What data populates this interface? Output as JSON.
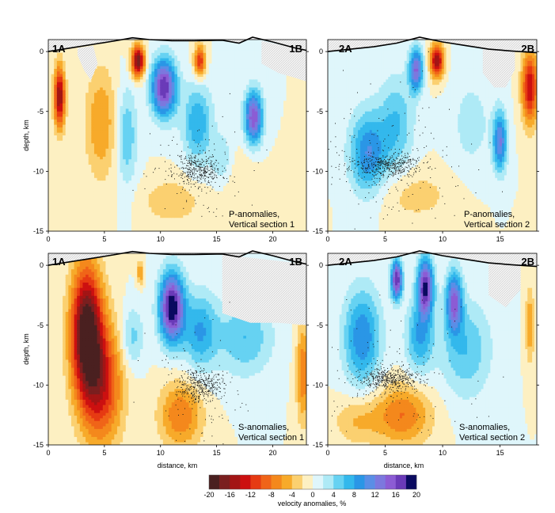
{
  "colors": {
    "scale": [
      "#4a2020",
      "#7a1f1f",
      "#a31515",
      "#cc1010",
      "#e63a12",
      "#f06418",
      "#f4881c",
      "#f7aa2a",
      "#fbd070",
      "#fdf0c2",
      "#dff6fb",
      "#aeeaf6",
      "#66d2f2",
      "#33b8ec",
      "#2a96e6",
      "#5a8ee6",
      "#7c78de",
      "#8c5cd4",
      "#6a3ab8",
      "#0a0a60"
    ],
    "hatch": "#c9c9c9",
    "dots": "#1a1a1a"
  },
  "chart_data": [
    {
      "type": "heatmap",
      "id": "p1",
      "corner_left": "1A",
      "corner_right": "1B",
      "note_line1": "P-anomalies,",
      "note_line2": "Vertical section 1",
      "ylabel": "depth, km",
      "xlabel": "",
      "xlim": [
        0,
        23
      ],
      "ylim": [
        -15,
        1
      ],
      "xticks": [
        "0",
        "5",
        "10",
        "15",
        "20"
      ],
      "xtick_values": [
        0,
        5,
        10,
        15,
        20
      ],
      "yticks": [
        "0",
        "-5",
        "-10",
        "-15"
      ],
      "ytick_values": [
        0,
        -5,
        -10,
        -15
      ],
      "topography": [
        [
          0,
          0
        ],
        [
          2,
          0.3
        ],
        [
          4,
          0.6
        ],
        [
          6,
          0.9
        ],
        [
          7.5,
          1.15
        ],
        [
          9,
          1.0
        ],
        [
          11,
          0.9
        ],
        [
          13,
          0.9
        ],
        [
          15.5,
          0.95
        ],
        [
          17,
          0.7
        ],
        [
          18.2,
          1.2
        ],
        [
          20,
          0.8
        ],
        [
          22,
          0.3
        ],
        [
          23,
          0.1
        ]
      ],
      "blobs": [
        {
          "x": 1,
          "z": -3.8,
          "rx": 0.5,
          "rz": 2.6,
          "v": -16
        },
        {
          "x": 4.7,
          "z": -6,
          "rx": 1.4,
          "rz": 4.6,
          "v": -6
        },
        {
          "x": 8,
          "z": -0.8,
          "rx": 0.6,
          "rz": 1.3,
          "v": -18
        },
        {
          "x": 13.5,
          "z": -0.8,
          "rx": 0.5,
          "rz": 1.3,
          "v": -12
        },
        {
          "x": 11,
          "z": -12.5,
          "rx": 2.5,
          "rz": 1.8,
          "v": -4
        },
        {
          "x": 17,
          "z": -11,
          "rx": 1.8,
          "rz": 3,
          "v": -2
        },
        {
          "x": 10.3,
          "z": -3,
          "rx": 1.1,
          "rz": 2.4,
          "v": 18
        },
        {
          "x": 18.3,
          "z": -5.5,
          "rx": 0.8,
          "rz": 2.2,
          "v": 16
        },
        {
          "x": 7,
          "z": -7,
          "rx": 0.9,
          "rz": 4,
          "v": 6
        },
        {
          "x": 13.3,
          "z": -6,
          "rx": 1.3,
          "rz": 3.2,
          "v": 8
        },
        {
          "x": 15.5,
          "z": -9,
          "rx": 1,
          "rz": 2.2,
          "v": 4
        }
      ],
      "hatch_regions": [
        [
          [
            0,
            0
          ],
          [
            2,
            0.3
          ],
          [
            4,
            0.6
          ],
          [
            6,
            0.9
          ],
          [
            7.5,
            1.15
          ],
          [
            7.5,
            1.15
          ],
          [
            0,
            1.15
          ]
        ],
        [
          [
            19,
            -1
          ],
          [
            20.5,
            -1.8
          ],
          [
            22,
            -2.2
          ],
          [
            23,
            -2.5
          ],
          [
            23,
            0.1
          ],
          [
            19,
            0.9
          ]
        ],
        [
          [
            2.6,
            -0.3
          ],
          [
            3.2,
            -1.6
          ],
          [
            3.8,
            -2.4
          ],
          [
            4.4,
            -1
          ],
          [
            4,
            0.5
          ],
          [
            2.6,
            0.3
          ]
        ]
      ],
      "events": {
        "cx": 13.3,
        "cz": -9.8,
        "sx": 1.3,
        "sz": 1.2,
        "n": 380,
        "spread_x": 2.2,
        "spread_z": 2.4,
        "n_sparse": 110,
        "seed": 11
      }
    },
    {
      "type": "heatmap",
      "id": "p2",
      "corner_left": "2A",
      "corner_right": "2B",
      "note_line1": "P-anomalies,",
      "note_line2": "Vertical section 2",
      "ylabel": "",
      "xlabel": "",
      "xlim": [
        0,
        18.2
      ],
      "ylim": [
        -15,
        1
      ],
      "xticks": [
        "0",
        "5",
        "10",
        "15"
      ],
      "xtick_values": [
        0,
        5,
        10,
        15
      ],
      "yticks": [
        "0",
        "-5",
        "-10",
        "-15"
      ],
      "ytick_values": [
        0,
        -5,
        -10,
        -15
      ],
      "topography": [
        [
          0,
          0
        ],
        [
          2,
          0.2
        ],
        [
          4,
          0.4
        ],
        [
          6,
          0.7
        ],
        [
          8,
          1.2
        ],
        [
          10,
          0.8
        ],
        [
          12,
          0.5
        ],
        [
          14,
          0.2
        ],
        [
          16,
          0.05
        ],
        [
          18.2,
          -0.1
        ]
      ],
      "blobs": [
        {
          "x": 9.5,
          "z": -0.8,
          "rx": 0.6,
          "rz": 1.4,
          "v": -16
        },
        {
          "x": 17.6,
          "z": -3,
          "rx": 0.7,
          "rz": 3,
          "v": -14
        },
        {
          "x": 7.5,
          "z": -12,
          "rx": 3.5,
          "rz": 2.2,
          "v": -3
        },
        {
          "x": 3.5,
          "z": -8.5,
          "rx": 1.6,
          "rz": 3.5,
          "v": 10
        },
        {
          "x": 7.7,
          "z": -1.5,
          "rx": 0.6,
          "rz": 1.8,
          "v": 14
        },
        {
          "x": 15,
          "z": -7.5,
          "rx": 0.6,
          "rz": 2.5,
          "v": 12
        },
        {
          "x": 6,
          "z": -6,
          "rx": 1.5,
          "rz": 4,
          "v": 6
        },
        {
          "x": 12.5,
          "z": -6,
          "rx": 1.8,
          "rz": 4,
          "v": 3
        }
      ],
      "hatch_regions": [
        [
          [
            13.5,
            -1.8
          ],
          [
            14.5,
            -3
          ],
          [
            15.5,
            -3
          ],
          [
            16.3,
            -1.5
          ],
          [
            16.3,
            0.1
          ],
          [
            13.5,
            0.2
          ]
        ]
      ],
      "events": {
        "cx": 5,
        "cz": -9.5,
        "sx": 2.0,
        "sz": 0.9,
        "n": 480,
        "spread_x": 3.5,
        "spread_z": 3.0,
        "n_sparse": 170,
        "seed": 23
      }
    },
    {
      "type": "heatmap",
      "id": "s1",
      "corner_left": "1A",
      "corner_right": "1B",
      "note_line1": "S-anomalies,",
      "note_line2": "Vertical section 1",
      "ylabel": "depth, km",
      "xlabel": "",
      "xlim": [
        0,
        23
      ],
      "ylim": [
        -15,
        1
      ],
      "xticks": [
        "0",
        "5",
        "10",
        "15",
        "20"
      ],
      "xtick_values": [
        0,
        5,
        10,
        15,
        20
      ],
      "yticks": [
        "0",
        "-5",
        "-10",
        "-15"
      ],
      "ytick_values": [
        0,
        -5,
        -10,
        -15
      ],
      "topography": [
        [
          0,
          0
        ],
        [
          2,
          0.3
        ],
        [
          4,
          0.6
        ],
        [
          6,
          0.9
        ],
        [
          7.5,
          1.15
        ],
        [
          9,
          1.0
        ],
        [
          11,
          0.9
        ],
        [
          13,
          0.9
        ],
        [
          15.5,
          0.95
        ],
        [
          17,
          0.7
        ],
        [
          18.2,
          1.2
        ],
        [
          20,
          0.8
        ],
        [
          22,
          0.3
        ],
        [
          23,
          0.1
        ]
      ],
      "blobs": [
        {
          "x": 3.4,
          "z": -5.5,
          "rx": 1.4,
          "rz": 5.5,
          "v": -20
        },
        {
          "x": 4.8,
          "z": -10,
          "rx": 1.8,
          "rz": 5,
          "v": -12
        },
        {
          "x": 11.8,
          "z": -12.5,
          "rx": 1.9,
          "rz": 2.8,
          "v": -8
        },
        {
          "x": 22.7,
          "z": -9,
          "rx": 0.6,
          "rz": 4,
          "v": -8
        },
        {
          "x": 8.2,
          "z": -0.6,
          "rx": 0.3,
          "rz": 1,
          "v": -6
        },
        {
          "x": 11,
          "z": -3.5,
          "rx": 1.1,
          "rz": 2.9,
          "v": 20
        },
        {
          "x": 13.5,
          "z": -5.5,
          "rx": 1.5,
          "rz": 3.2,
          "v": 8
        },
        {
          "x": 17.5,
          "z": -6,
          "rx": 2.5,
          "rz": 3.2,
          "v": 6
        },
        {
          "x": 7.5,
          "z": -6,
          "rx": 1,
          "rz": 2.5,
          "v": 5
        }
      ],
      "hatch_regions": [
        [
          [
            0,
            0
          ],
          [
            2,
            0.3
          ],
          [
            4,
            0.6
          ],
          [
            6,
            0.9
          ],
          [
            7.5,
            1.15
          ],
          [
            7.5,
            1.15
          ],
          [
            0,
            1.15
          ]
        ],
        [
          [
            15.5,
            -4
          ],
          [
            18,
            -4.8
          ],
          [
            20.5,
            -4.8
          ],
          [
            23,
            -5
          ],
          [
            23,
            0.1
          ],
          [
            15.5,
            0.9
          ]
        ]
      ],
      "events": {
        "cx": 13.5,
        "cz": -10,
        "sx": 1.2,
        "sz": 1.1,
        "n": 380,
        "spread_x": 2.3,
        "spread_z": 3.0,
        "n_sparse": 120,
        "seed": 37
      }
    },
    {
      "type": "heatmap",
      "id": "s2",
      "corner_left": "2A",
      "corner_right": "2B",
      "note_line1": "S-anomalies,",
      "note_line2": "Vertical section 2",
      "ylabel": "",
      "xlabel": "",
      "xlim": [
        0,
        18.2
      ],
      "ylim": [
        -15,
        1
      ],
      "xticks": [
        "0",
        "5",
        "10",
        "15"
      ],
      "xtick_values": [
        0,
        5,
        10,
        15
      ],
      "yticks": [
        "0",
        "-5",
        "-10",
        "-15"
      ],
      "ytick_values": [
        0,
        -5,
        -10,
        -15
      ],
      "topography": [
        [
          0,
          0
        ],
        [
          2,
          0.2
        ],
        [
          4,
          0.4
        ],
        [
          6,
          0.7
        ],
        [
          8,
          1.2
        ],
        [
          10,
          0.8
        ],
        [
          12,
          0.5
        ],
        [
          14,
          0.2
        ],
        [
          16,
          0.05
        ],
        [
          18.2,
          -0.1
        ]
      ],
      "blobs": [
        {
          "x": 6.5,
          "z": -12.5,
          "rx": 2.5,
          "rz": 2.5,
          "v": -8
        },
        {
          "x": 2.5,
          "z": -13,
          "rx": 2,
          "rz": 2,
          "v": -4
        },
        {
          "x": 17.6,
          "z": -5,
          "rx": 0.4,
          "rz": 3,
          "v": -6
        },
        {
          "x": 6,
          "z": -1.2,
          "rx": 0.5,
          "rz": 1.6,
          "v": 18
        },
        {
          "x": 8.5,
          "z": -1.8,
          "rx": 0.7,
          "rz": 2.4,
          "v": 18
        },
        {
          "x": 11,
          "z": -3,
          "rx": 0.7,
          "rz": 2.5,
          "v": 14
        },
        {
          "x": 3,
          "z": -6,
          "rx": 1.6,
          "rz": 4,
          "v": 10
        },
        {
          "x": 12,
          "z": -7,
          "rx": 2.2,
          "rz": 4,
          "v": 6
        },
        {
          "x": 8,
          "z": -6,
          "rx": 1.2,
          "rz": 3,
          "v": 8
        }
      ],
      "hatch_regions": [
        [
          [
            14,
            -2.5
          ],
          [
            15.5,
            -3.5
          ],
          [
            16.8,
            -2
          ],
          [
            16.8,
            0
          ],
          [
            14,
            0.2
          ]
        ]
      ],
      "events": {
        "cx": 5.5,
        "cz": -9.5,
        "sx": 1.9,
        "sz": 0.9,
        "n": 480,
        "spread_x": 3.5,
        "spread_z": 3.5,
        "n_sparse": 170,
        "seed": 53
      }
    },
    {
      "type": "colorbar",
      "id": "cb",
      "xlabel_top": "distance, km",
      "label": "velocity anomalies, %",
      "min": -20,
      "max": 20,
      "step": 2,
      "ticks": [
        "-20",
        "-16",
        "-12",
        "-8",
        "-4",
        "0",
        "4",
        "8",
        "12",
        "16",
        "20"
      ],
      "tick_values": [
        -20,
        -16,
        -12,
        -8,
        -4,
        0,
        4,
        8,
        12,
        16,
        20
      ]
    }
  ]
}
